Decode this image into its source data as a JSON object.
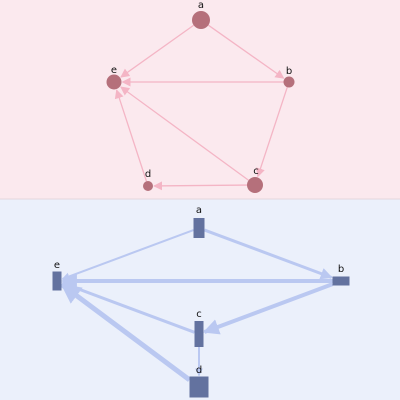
{
  "top_graph": {
    "background": "#fbe9ee",
    "node_color": "#b5707b",
    "edge_color": "#f4b5c5",
    "nodes": [
      {
        "id": "a",
        "label": "a"
      },
      {
        "id": "b",
        "label": "b"
      },
      {
        "id": "c",
        "label": "c"
      },
      {
        "id": "d",
        "label": "d"
      },
      {
        "id": "e",
        "label": "e"
      }
    ],
    "edges": [
      {
        "from": "a",
        "to": "e"
      },
      {
        "from": "a",
        "to": "b"
      },
      {
        "from": "b",
        "to": "e"
      },
      {
        "from": "b",
        "to": "c"
      },
      {
        "from": "c",
        "to": "e"
      },
      {
        "from": "c",
        "to": "d"
      },
      {
        "from": "d",
        "to": "e"
      }
    ]
  },
  "bottom_graph": {
    "background": "#ebf0fb",
    "node_color": "#63729f",
    "edge_color": "#bac8f1",
    "nodes": [
      {
        "id": "a",
        "label": "a"
      },
      {
        "id": "b",
        "label": "b"
      },
      {
        "id": "c",
        "label": "c"
      },
      {
        "id": "d",
        "label": "d"
      },
      {
        "id": "e",
        "label": "e"
      }
    ],
    "edges": [
      {
        "from": "a",
        "to": "e"
      },
      {
        "from": "a",
        "to": "b"
      },
      {
        "from": "b",
        "to": "e"
      },
      {
        "from": "b",
        "to": "c"
      },
      {
        "from": "c",
        "to": "e"
      },
      {
        "from": "c",
        "to": "d"
      },
      {
        "from": "d",
        "to": "e"
      }
    ]
  }
}
